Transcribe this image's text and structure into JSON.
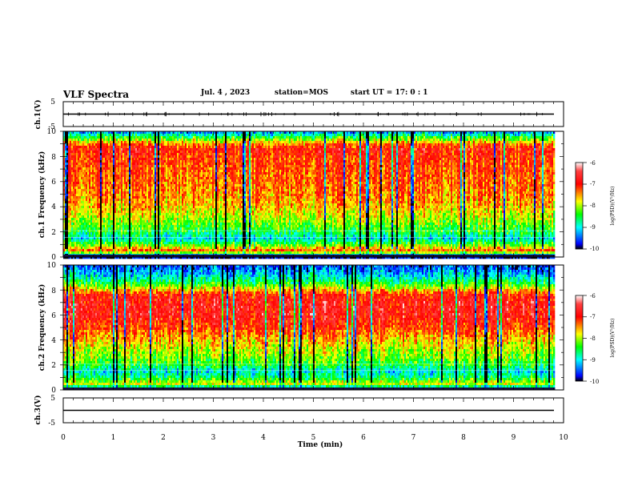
{
  "header": {
    "title": "VLF Spectra",
    "date": "Jul. 4 , 2023",
    "station": "station=MOS",
    "start_time": "start UT = 17: 0 : 1"
  },
  "colorbar": {
    "label": "log(PSD)(V²/Hz)",
    "ticks": [
      "-6",
      "-7",
      "-8",
      "-9",
      "-10"
    ],
    "colors": [
      "#ffffff",
      "#ff3030",
      "#ff0000",
      "#ffff00",
      "#00ff00",
      "#00ffff",
      "#0000ff",
      "#000000"
    ]
  },
  "chart_data": [
    {
      "type": "line",
      "panel": "ch1-waveform",
      "ylabel": "ch.1(V)",
      "ylim": [
        -5,
        5
      ],
      "yticks": [
        "5",
        "-5"
      ],
      "baseline": 0,
      "xlim": [
        0,
        10
      ]
    },
    {
      "type": "heatmap",
      "panel": "ch1-spectrogram",
      "ylabel": "ch.1 Frequency (kHz)",
      "ylim": [
        0,
        10
      ],
      "yticks": [
        "0",
        "2",
        "4",
        "6",
        "8",
        "10"
      ],
      "xlim": [
        0,
        10
      ],
      "data_end_min": 9.83,
      "zlim": [
        -10,
        -6
      ],
      "zlabel": "log(PSD)(V²/Hz)",
      "band_profile_khz": [
        0,
        0.5,
        1.0,
        1.5,
        2.0,
        3.0,
        4.0,
        5.0,
        6.0,
        7.0,
        8.0,
        8.6,
        9.0,
        9.5,
        10.0
      ],
      "band_profile_log_psd": [
        -9.8,
        -7.2,
        -8.3,
        -9.0,
        -8.5,
        -8.0,
        -7.6,
        -7.4,
        -7.3,
        -7.2,
        -7.1,
        -6.9,
        -7.4,
        -8.4,
        -9.4
      ]
    },
    {
      "type": "heatmap",
      "panel": "ch2-spectrogram",
      "ylabel": "ch.2 Frequency (kHz)",
      "ylim": [
        0,
        10
      ],
      "yticks": [
        "0",
        "2",
        "4",
        "6",
        "8",
        "10"
      ],
      "xlim": [
        0,
        10
      ],
      "data_end_min": 9.83,
      "zlim": [
        -10,
        -6
      ],
      "zlabel": "log(PSD)(V²/Hz)",
      "band_profile_khz": [
        0,
        0.5,
        1.0,
        1.5,
        2.0,
        3.0,
        4.0,
        5.0,
        6.0,
        7.0,
        7.6,
        8.0,
        8.5,
        9.0,
        9.5,
        10.0
      ],
      "band_profile_log_psd": [
        -9.9,
        -7.8,
        -8.6,
        -9.0,
        -8.4,
        -8.0,
        -7.6,
        -7.1,
        -6.8,
        -6.8,
        -7.0,
        -7.6,
        -8.4,
        -8.9,
        -9.3,
        -9.6
      ]
    },
    {
      "type": "line",
      "panel": "ch3-waveform",
      "ylabel": "ch.3(V)",
      "ylim": [
        -5,
        5
      ],
      "yticks": [
        "5",
        "-5"
      ],
      "baseline": 0,
      "xlim": [
        0,
        10
      ],
      "xlabel": "Time (min)",
      "xticks": [
        "0",
        "1",
        "2",
        "3",
        "4",
        "5",
        "6",
        "7",
        "8",
        "9",
        "10"
      ]
    }
  ]
}
